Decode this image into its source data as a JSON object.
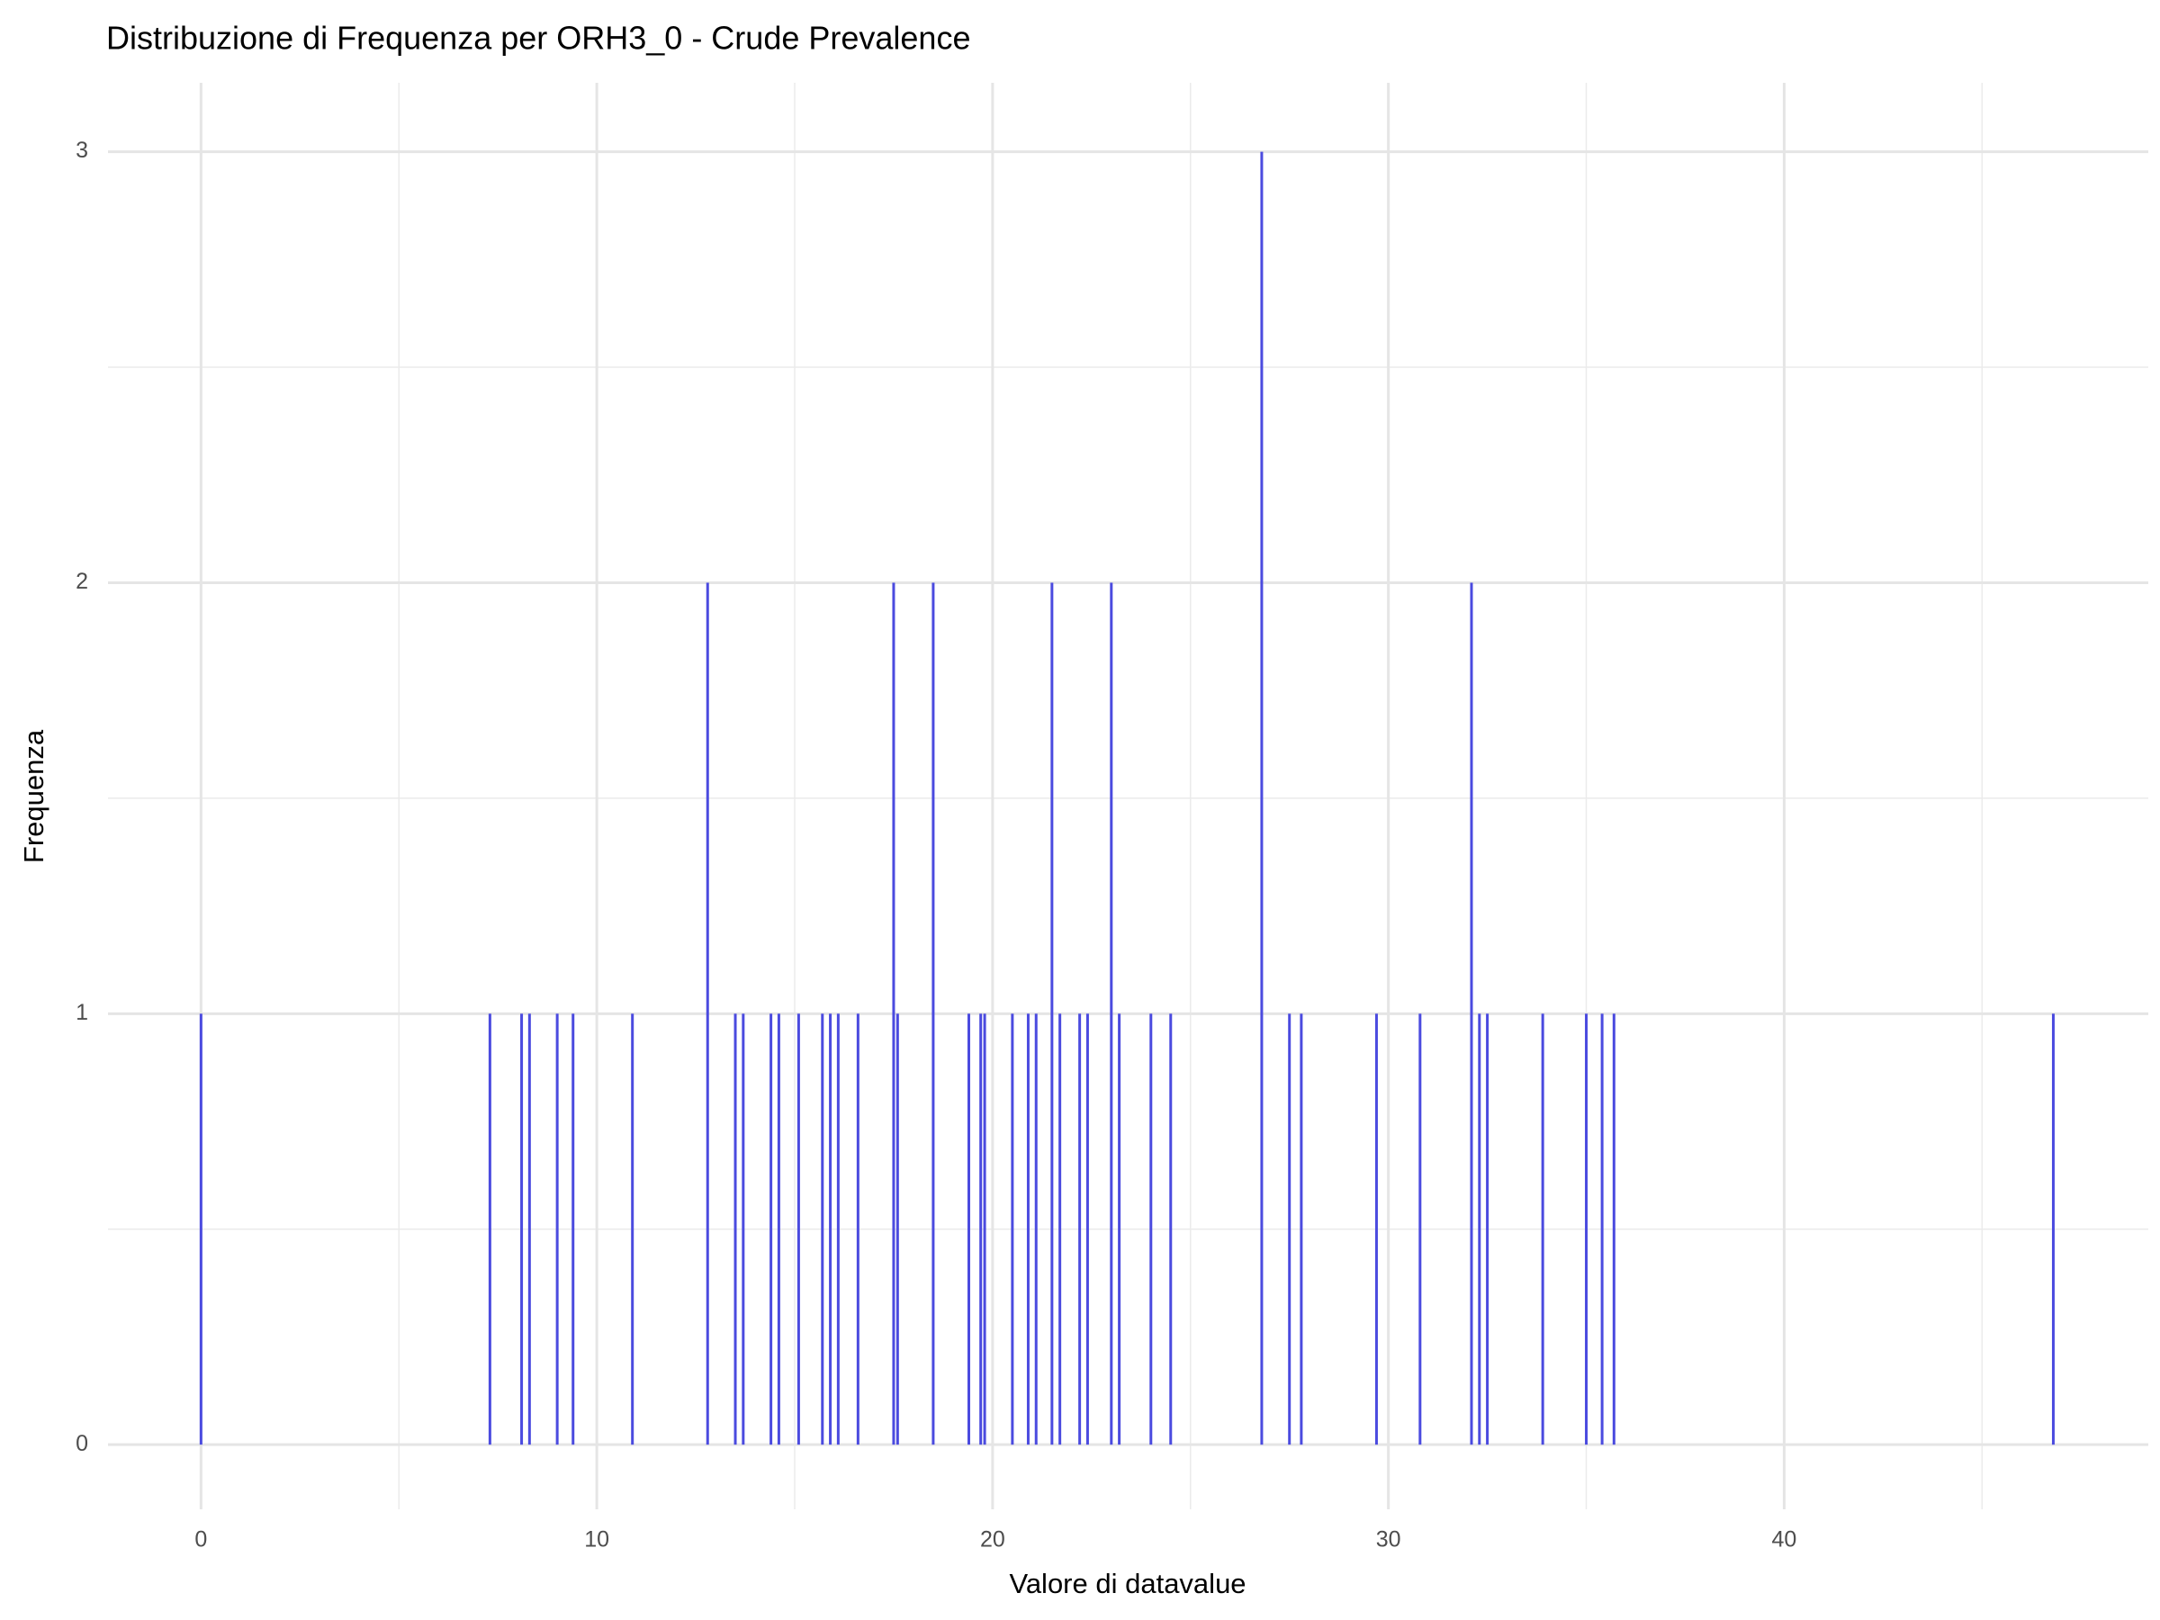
{
  "chart_data": {
    "type": "bar",
    "title": "Distribuzione di Frequenza per ORH3_0 - Crude Prevalence",
    "x_label": "Valore di datavalue",
    "y_label": "Frequenza",
    "color": "#4b4bdf",
    "grid": true,
    "x": [
      0,
      7.3,
      8.1,
      8.3,
      9.0,
      9.4,
      10.9,
      12.8,
      13.5,
      13.7,
      14.4,
      14.6,
      15.1,
      15.7,
      15.9,
      16.1,
      16.6,
      17.5,
      17.6,
      18.5,
      19.4,
      19.7,
      19.8,
      20.5,
      20.9,
      21.1,
      21.5,
      21.7,
      22.2,
      22.4,
      23.0,
      23.2,
      24.0,
      24.5,
      26.8,
      27.5,
      27.8,
      29.7,
      30.8,
      32.1,
      32.3,
      32.5,
      33.9,
      35.0,
      35.4,
      35.7,
      46.8
    ],
    "values": [
      1,
      1,
      1,
      1,
      1,
      1,
      1,
      2,
      1,
      1,
      1,
      1,
      1,
      1,
      1,
      1,
      1,
      2,
      1,
      2,
      1,
      1,
      1,
      1,
      1,
      1,
      2,
      1,
      1,
      1,
      2,
      1,
      1,
      1,
      3,
      1,
      1,
      1,
      1,
      2,
      1,
      1,
      1,
      1,
      1,
      1,
      1
    ],
    "xlim": [
      -2.35,
      49.2
    ],
    "ylim": [
      -0.15,
      3.16
    ],
    "xticks": [
      0,
      10,
      20,
      30,
      40
    ],
    "yticks": [
      0,
      1,
      2,
      3
    ]
  }
}
